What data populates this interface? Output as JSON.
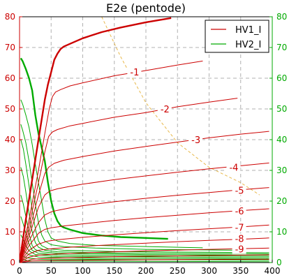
{
  "chart_data": {
    "type": "line",
    "title": "E2e (pentode)",
    "xlim": [
      0,
      400
    ],
    "ylim": [
      0,
      80
    ],
    "x_ticks": [
      0,
      50,
      100,
      150,
      200,
      250,
      300,
      350,
      400
    ],
    "y_ticks": [
      0,
      10,
      20,
      30,
      40,
      50,
      60,
      70,
      80
    ],
    "grid": true,
    "legend_position": "top-right",
    "legend": [
      {
        "label": "HV1_I",
        "color": "#cc0000"
      },
      {
        "label": "HV2_I",
        "color": "#00aa00"
      }
    ],
    "colors": {
      "hv1": "#cc0000",
      "hv2": "#00aa00",
      "load_line": "#e8b84a"
    },
    "hv1_curves": [
      {
        "label": "",
        "bold": true,
        "points": [
          [
            0,
            0
          ],
          [
            10,
            14
          ],
          [
            20,
            27
          ],
          [
            30,
            40
          ],
          [
            40,
            53
          ],
          [
            45,
            58
          ],
          [
            50,
            62
          ],
          [
            55,
            66
          ],
          [
            60,
            68
          ],
          [
            65,
            69.5
          ],
          [
            70,
            70.3
          ],
          [
            80,
            71.2
          ],
          [
            100,
            73
          ],
          [
            130,
            75
          ],
          [
            160,
            76.5
          ],
          [
            200,
            78.2
          ],
          [
            240,
            79.6
          ]
        ]
      },
      {
        "label": "-1",
        "bold": false,
        "points": [
          [
            0,
            0
          ],
          [
            15,
            14
          ],
          [
            30,
            30
          ],
          [
            40,
            42
          ],
          [
            47,
            50
          ],
          [
            52,
            54
          ],
          [
            57,
            55.5
          ],
          [
            65,
            56.3
          ],
          [
            80,
            57.5
          ],
          [
            100,
            58.5
          ],
          [
            150,
            60.8
          ],
          [
            200,
            62.5
          ],
          [
            250,
            64.3
          ],
          [
            290,
            65.6
          ]
        ]
      },
      {
        "label": "-2",
        "bold": false,
        "points": [
          [
            0,
            0
          ],
          [
            15,
            12
          ],
          [
            30,
            26
          ],
          [
            40,
            36
          ],
          [
            46,
            41
          ],
          [
            52,
            42.5
          ],
          [
            60,
            43.3
          ],
          [
            80,
            44.5
          ],
          [
            100,
            45.3
          ],
          [
            150,
            47.3
          ],
          [
            200,
            48.8
          ],
          [
            250,
            50.7
          ],
          [
            300,
            52.2
          ],
          [
            345,
            53.5
          ]
        ]
      },
      {
        "label": "-3",
        "bold": false,
        "points": [
          [
            0,
            0
          ],
          [
            15,
            10
          ],
          [
            30,
            22
          ],
          [
            40,
            29
          ],
          [
            46,
            31
          ],
          [
            55,
            32.3
          ],
          [
            70,
            33.3
          ],
          [
            100,
            34.5
          ],
          [
            150,
            36.3
          ],
          [
            200,
            37.8
          ],
          [
            250,
            39.2
          ],
          [
            300,
            40.6
          ],
          [
            350,
            41.8
          ],
          [
            395,
            42.7
          ]
        ]
      },
      {
        "label": "-4",
        "bold": false,
        "points": [
          [
            0,
            0
          ],
          [
            15,
            8.5
          ],
          [
            30,
            18
          ],
          [
            40,
            22
          ],
          [
            48,
            23.3
          ],
          [
            60,
            24
          ],
          [
            80,
            24.8
          ],
          [
            100,
            25.5
          ],
          [
            150,
            27
          ],
          [
            200,
            28.2
          ],
          [
            250,
            29.4
          ],
          [
            300,
            30.5
          ],
          [
            350,
            31.5
          ],
          [
            395,
            32.4
          ]
        ]
      },
      {
        "label": "-5",
        "bold": false,
        "points": [
          [
            0,
            0
          ],
          [
            15,
            7
          ],
          [
            30,
            13
          ],
          [
            40,
            15.5
          ],
          [
            50,
            16.5
          ],
          [
            60,
            17
          ],
          [
            80,
            17.8
          ],
          [
            100,
            18.5
          ],
          [
            150,
            19.8
          ],
          [
            200,
            20.9
          ],
          [
            250,
            21.9
          ],
          [
            300,
            22.8
          ],
          [
            350,
            23.7
          ],
          [
            395,
            24.4
          ]
        ]
      },
      {
        "label": "-6",
        "bold": false,
        "points": [
          [
            0,
            0
          ],
          [
            15,
            5.5
          ],
          [
            30,
            9.5
          ],
          [
            40,
            10.8
          ],
          [
            50,
            11.3
          ],
          [
            70,
            11.9
          ],
          [
            100,
            12.6
          ],
          [
            150,
            13.7
          ],
          [
            200,
            14.6
          ],
          [
            250,
            15.4
          ],
          [
            300,
            16.2
          ],
          [
            350,
            16.9
          ],
          [
            395,
            17.5
          ]
        ]
      },
      {
        "label": "-7",
        "bold": false,
        "points": [
          [
            0,
            0
          ],
          [
            15,
            4
          ],
          [
            30,
            6
          ],
          [
            45,
            7
          ],
          [
            60,
            7.4
          ],
          [
            100,
            8.2
          ],
          [
            150,
            9
          ],
          [
            200,
            9.7
          ],
          [
            250,
            10.4
          ],
          [
            300,
            11
          ],
          [
            350,
            11.6
          ],
          [
            395,
            12.2
          ]
        ]
      },
      {
        "label": "-8",
        "bold": false,
        "points": [
          [
            0,
            0
          ],
          [
            15,
            2.8
          ],
          [
            30,
            4
          ],
          [
            50,
            4.5
          ],
          [
            80,
            5
          ],
          [
            120,
            5.5
          ],
          [
            200,
            6.3
          ],
          [
            250,
            6.8
          ],
          [
            300,
            7.2
          ],
          [
            350,
            7.6
          ],
          [
            395,
            8
          ]
        ]
      },
      {
        "label": "-9",
        "bold": false,
        "points": [
          [
            0,
            0
          ],
          [
            15,
            1.8
          ],
          [
            30,
            2.4
          ],
          [
            60,
            2.8
          ],
          [
            120,
            3.3
          ],
          [
            200,
            3.8
          ],
          [
            300,
            4.3
          ],
          [
            395,
            4.7
          ]
        ]
      },
      {
        "label": "",
        "bold": false,
        "points": [
          [
            0,
            0
          ],
          [
            20,
            1.1
          ],
          [
            50,
            1.4
          ],
          [
            150,
            1.9
          ],
          [
            300,
            2.3
          ],
          [
            395,
            2.5
          ]
        ]
      },
      {
        "label": "",
        "bold": false,
        "points": [
          [
            0,
            0
          ],
          [
            20,
            0.5
          ],
          [
            60,
            0.7
          ],
          [
            200,
            0.9
          ],
          [
            395,
            1.1
          ]
        ]
      }
    ],
    "hv2_curves": [
      {
        "label": "",
        "bold": true,
        "points": [
          [
            2,
            66.5
          ],
          [
            5,
            65.5
          ],
          [
            10,
            63
          ],
          [
            15,
            60
          ],
          [
            20,
            56
          ],
          [
            25,
            48
          ],
          [
            30,
            42
          ],
          [
            40,
            33
          ],
          [
            45,
            26
          ],
          [
            50,
            20
          ],
          [
            55,
            16
          ],
          [
            60,
            13.5
          ],
          [
            65,
            12
          ],
          [
            70,
            11.4
          ],
          [
            80,
            10.7
          ],
          [
            100,
            9.6
          ],
          [
            130,
            8.8
          ],
          [
            160,
            8.3
          ],
          [
            200,
            8
          ],
          [
            235,
            7.7
          ]
        ]
      },
      {
        "label": "",
        "bold": false,
        "points": [
          [
            2,
            53
          ],
          [
            5,
            51.5
          ],
          [
            10,
            48
          ],
          [
            15,
            44
          ],
          [
            20,
            38.5
          ],
          [
            25,
            32
          ],
          [
            30,
            26
          ],
          [
            35,
            20
          ],
          [
            40,
            14
          ],
          [
            45,
            10
          ],
          [
            50,
            8
          ],
          [
            60,
            7
          ],
          [
            80,
            6.2
          ],
          [
            120,
            5.6
          ],
          [
            200,
            5.2
          ],
          [
            290,
            4.8
          ]
        ]
      },
      {
        "label": "",
        "bold": false,
        "points": [
          [
            2,
            45
          ],
          [
            5,
            43
          ],
          [
            10,
            39
          ],
          [
            15,
            33
          ],
          [
            20,
            26
          ],
          [
            25,
            19
          ],
          [
            30,
            13
          ],
          [
            35,
            9
          ],
          [
            40,
            7
          ],
          [
            50,
            5.8
          ],
          [
            70,
            5.2
          ],
          [
            120,
            4.7
          ],
          [
            200,
            4.3
          ],
          [
            345,
            4
          ]
        ]
      },
      {
        "label": "",
        "bold": false,
        "points": [
          [
            2,
            40
          ],
          [
            6,
            37
          ],
          [
            10,
            32
          ],
          [
            15,
            25
          ],
          [
            20,
            17
          ],
          [
            25,
            11
          ],
          [
            30,
            7
          ],
          [
            35,
            5.5
          ],
          [
            45,
            4.5
          ],
          [
            70,
            4
          ],
          [
            150,
            3.6
          ],
          [
            250,
            3.4
          ],
          [
            395,
            3.2
          ]
        ]
      },
      {
        "label": "",
        "bold": false,
        "points": [
          [
            2,
            31
          ],
          [
            6,
            28
          ],
          [
            10,
            23
          ],
          [
            15,
            16
          ],
          [
            20,
            10
          ],
          [
            25,
            6.5
          ],
          [
            30,
            5
          ],
          [
            40,
            4
          ],
          [
            60,
            3.5
          ],
          [
            150,
            3.1
          ],
          [
            395,
            2.8
          ]
        ]
      },
      {
        "label": "",
        "bold": false,
        "points": [
          [
            2,
            22
          ],
          [
            6,
            19
          ],
          [
            10,
            15
          ],
          [
            15,
            9.5
          ],
          [
            20,
            5.5
          ],
          [
            25,
            4.2
          ],
          [
            35,
            3.5
          ],
          [
            60,
            3
          ],
          [
            200,
            2.6
          ],
          [
            395,
            2.4
          ]
        ]
      },
      {
        "label": "",
        "bold": false,
        "points": [
          [
            2,
            15
          ],
          [
            6,
            12.5
          ],
          [
            10,
            9.5
          ],
          [
            15,
            6
          ],
          [
            20,
            4
          ],
          [
            30,
            3
          ],
          [
            60,
            2.5
          ],
          [
            200,
            2.2
          ],
          [
            395,
            2
          ]
        ]
      },
      {
        "label": "",
        "bold": false,
        "points": [
          [
            2,
            9
          ],
          [
            6,
            7.5
          ],
          [
            10,
            5.5
          ],
          [
            15,
            3.8
          ],
          [
            25,
            2.6
          ],
          [
            60,
            2
          ],
          [
            395,
            1.6
          ]
        ]
      },
      {
        "label": "",
        "bold": false,
        "points": [
          [
            2,
            5
          ],
          [
            8,
            3.5
          ],
          [
            15,
            2.5
          ],
          [
            30,
            1.8
          ],
          [
            100,
            1.4
          ],
          [
            395,
            1.2
          ]
        ]
      },
      {
        "label": "",
        "bold": false,
        "points": [
          [
            2,
            2.5
          ],
          [
            10,
            1.6
          ],
          [
            30,
            1.1
          ],
          [
            395,
            0.8
          ]
        ]
      },
      {
        "label": "",
        "bold": false,
        "points": [
          [
            2,
            1
          ],
          [
            20,
            0.5
          ],
          [
            395,
            0.3
          ]
        ]
      }
    ],
    "load_line": [
      [
        130,
        80
      ],
      [
        160,
        67
      ],
      [
        200,
        52
      ],
      [
        250,
        39
      ],
      [
        300,
        31
      ],
      [
        350,
        26
      ],
      [
        380,
        22
      ]
    ],
    "curve_labels": [
      {
        "text": "-1",
        "x": 175,
        "y": 62
      },
      {
        "text": "-2",
        "x": 223,
        "y": 50
      },
      {
        "text": "-3",
        "x": 272,
        "y": 40
      },
      {
        "text": "-4",
        "x": 332,
        "y": 31
      },
      {
        "text": "-5",
        "x": 341,
        "y": 23.5
      },
      {
        "text": "-6",
        "x": 341,
        "y": 16.8
      },
      {
        "text": "-7",
        "x": 341,
        "y": 11.5
      },
      {
        "text": "-8",
        "x": 341,
        "y": 7.8
      },
      {
        "text": "-9",
        "x": 341,
        "y": 4.4
      }
    ]
  }
}
